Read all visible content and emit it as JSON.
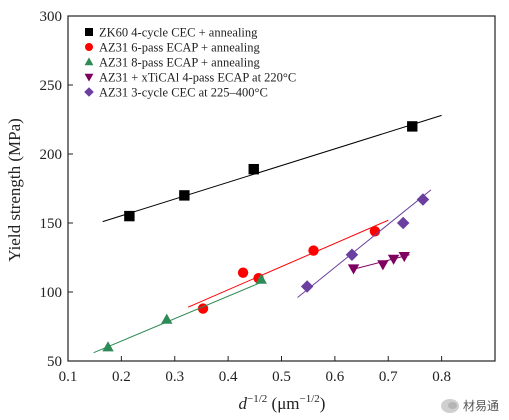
{
  "chart_data": {
    "type": "scatter",
    "ylabel": "Yield strength (MPa)",
    "xlabel_base": "d",
    "xlabel_exp": "−1/2",
    "xlabel_unit_open": " (μm",
    "xlabel_unit_exp": "−1/2",
    "xlabel_unit_close": ")",
    "xlim": [
      0.1,
      0.9
    ],
    "ylim": [
      50,
      300
    ],
    "xticks": [
      "0.1",
      "0.2",
      "0.3",
      "0.4",
      "0.5",
      "0.6",
      "0.7",
      "0.8"
    ],
    "yticks": [
      "50",
      "100",
      "150",
      "200",
      "250",
      "300"
    ],
    "grid": false,
    "legend_position": "top-left",
    "series": [
      {
        "name": "ZK60 4-cycle CEC + annealing",
        "marker": "square",
        "color": "#000000",
        "points": [
          [
            0.215,
            155
          ],
          [
            0.318,
            170
          ],
          [
            0.448,
            189
          ],
          [
            0.745,
            220
          ]
        ],
        "fit": [
          [
            0.165,
            151
          ],
          [
            0.8,
            228
          ]
        ]
      },
      {
        "name": "AZ31 6-pass ECAP + annealing",
        "marker": "circle",
        "color": "#ff0000",
        "points": [
          [
            0.353,
            88
          ],
          [
            0.428,
            114
          ],
          [
            0.457,
            110
          ],
          [
            0.56,
            130
          ],
          [
            0.675,
            144
          ]
        ],
        "fit": [
          [
            0.325,
            89
          ],
          [
            0.7,
            152
          ]
        ]
      },
      {
        "name": "AZ31 8-pass ECAP + annealing",
        "marker": "triangle-up",
        "color": "#2e8b57",
        "points": [
          [
            0.175,
            60
          ],
          [
            0.285,
            80
          ],
          [
            0.462,
            109
          ]
        ],
        "fit": [
          [
            0.148,
            56
          ],
          [
            0.462,
            107
          ]
        ]
      },
      {
        "name": "AZ31 + xTiCAl 4-pass ECAP at 220°C",
        "marker": "triangle-down",
        "color": "#800060",
        "points": [
          [
            0.635,
            117
          ],
          [
            0.69,
            120
          ],
          [
            0.71,
            124
          ],
          [
            0.73,
            126
          ]
        ],
        "fit": [
          [
            0.63,
            116
          ],
          [
            0.74,
            127
          ]
        ]
      },
      {
        "name": "AZ31 3-cycle CEC at 225–400°C",
        "marker": "diamond",
        "color": "#6b3fa0",
        "points": [
          [
            0.548,
            104
          ],
          [
            0.632,
            127
          ],
          [
            0.728,
            150
          ],
          [
            0.765,
            167
          ]
        ],
        "fit": [
          [
            0.53,
            96
          ],
          [
            0.78,
            174
          ]
        ]
      }
    ]
  },
  "watermark": {
    "text": "材易通",
    "icon": "wechat-icon"
  }
}
